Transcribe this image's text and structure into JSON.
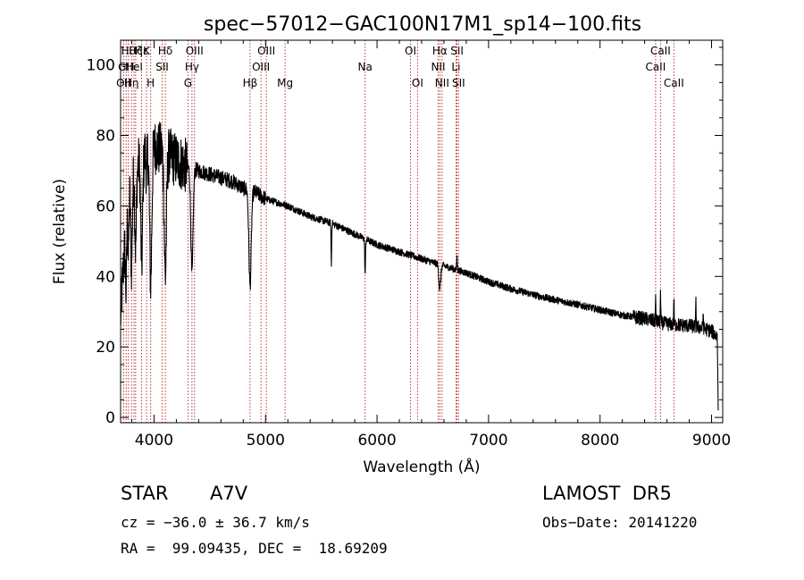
{
  "chart_data": {
    "type": "line",
    "title": "spec−57012−GAC100N17M1_sp14−100.fits",
    "xlabel": "Wavelength (Å)",
    "ylabel": "Flux (relative)",
    "xlim": [
      3700,
      9100
    ],
    "ylim": [
      -1.5,
      107
    ],
    "x_ticks": [
      {
        "value": 4000,
        "label": "4000"
      },
      {
        "value": 5000,
        "label": "5000"
      },
      {
        "value": 6000,
        "label": "6000"
      },
      {
        "value": 7000,
        "label": "7000"
      },
      {
        "value": 8000,
        "label": "8000"
      },
      {
        "value": 9000,
        "label": "9000"
      }
    ],
    "y_ticks": [
      {
        "value": 0,
        "label": "0"
      },
      {
        "value": 20,
        "label": "20"
      },
      {
        "value": 40,
        "label": "40"
      },
      {
        "value": 60,
        "label": "60"
      },
      {
        "value": 80,
        "label": "80"
      },
      {
        "value": 100,
        "label": "100"
      }
    ],
    "grid": false,
    "spectrum_anchors": [
      [
        3700,
        28
      ],
      [
        3720,
        40
      ],
      [
        3740,
        50
      ],
      [
        3760,
        62
      ],
      [
        3780,
        66
      ],
      [
        3800,
        68
      ],
      [
        3830,
        70
      ],
      [
        3860,
        72
      ],
      [
        3900,
        74
      ],
      [
        3950,
        76
      ],
      [
        4000,
        77
      ],
      [
        4050,
        76
      ],
      [
        4100,
        75
      ],
      [
        4150,
        74
      ],
      [
        4200,
        73
      ],
      [
        4250,
        72
      ],
      [
        4300,
        71
      ],
      [
        4400,
        70
      ],
      [
        4500,
        69
      ],
      [
        4600,
        68
      ],
      [
        4700,
        67
      ],
      [
        4800,
        65
      ],
      [
        4900,
        64
      ],
      [
        5000,
        62
      ],
      [
        5100,
        61
      ],
      [
        5200,
        60
      ],
      [
        5400,
        57
      ],
      [
        5600,
        55
      ],
      [
        5800,
        52
      ],
      [
        6000,
        49
      ],
      [
        6200,
        47
      ],
      [
        6400,
        45
      ],
      [
        6600,
        43
      ],
      [
        6800,
        41
      ],
      [
        7000,
        38.5
      ],
      [
        7200,
        36.5
      ],
      [
        7500,
        34
      ],
      [
        7800,
        32
      ],
      [
        8000,
        30.5
      ],
      [
        8200,
        29
      ],
      [
        8400,
        28
      ],
      [
        8600,
        26.5
      ],
      [
        8800,
        26
      ],
      [
        8900,
        25.5
      ],
      [
        9000,
        24.5
      ],
      [
        9050,
        23
      ]
    ],
    "absorption_features": [
      {
        "center": 3750,
        "depth": 20,
        "width": 8
      },
      {
        "center": 3770,
        "depth": 18,
        "width": 8
      },
      {
        "center": 3798,
        "depth": 25,
        "width": 10
      },
      {
        "center": 3835,
        "depth": 22,
        "width": 10
      },
      {
        "center": 3889,
        "depth": 30,
        "width": 12
      },
      {
        "center": 3933,
        "depth": 10,
        "width": 5
      },
      {
        "center": 3970,
        "depth": 38,
        "width": 14
      },
      {
        "center": 4101,
        "depth": 35,
        "width": 14
      },
      {
        "center": 4340,
        "depth": 30,
        "width": 14
      },
      {
        "center": 4861,
        "depth": 27,
        "width": 15
      },
      {
        "center": 5590,
        "depth": 12,
        "width": 4
      },
      {
        "center": 5893,
        "depth": 10,
        "width": 5
      },
      {
        "center": 6563,
        "depth": 7,
        "width": 12
      }
    ],
    "emission_features": [
      {
        "center": 6717,
        "height": 4,
        "width": 4
      },
      {
        "center": 8498,
        "height": 6,
        "width": 3
      },
      {
        "center": 8542,
        "height": 8,
        "width": 3
      },
      {
        "center": 8662,
        "height": 8,
        "width": 3
      },
      {
        "center": 8860,
        "height": 7,
        "width": 3
      },
      {
        "center": 8925,
        "height": 5,
        "width": 3
      }
    ],
    "line_markers": [
      {
        "wavelength": 3727,
        "label": "OII",
        "row": 3
      },
      {
        "wavelength": 3750,
        "label": "GH",
        "row": 2
      },
      {
        "wavelength": 3770,
        "label": "Hθ",
        "row": 1
      },
      {
        "wavelength": 3798,
        "label": "Hη",
        "row": 3
      },
      {
        "wavelength": 3820,
        "label": "HeI",
        "row": 2
      },
      {
        "wavelength": 3835,
        "label": "Hζ",
        "row": 1
      },
      {
        "wavelength": 3889,
        "label": "Hε",
        "row": 0
      },
      {
        "wavelength": 3933,
        "label": "K",
        "row": 1
      },
      {
        "wavelength": 3970,
        "label": "H",
        "row": 3
      },
      {
        "wavelength": 4072,
        "label": "SII",
        "row": 2
      },
      {
        "wavelength": 4101,
        "label": "Hδ",
        "row": 1
      },
      {
        "wavelength": 4304,
        "label": "G",
        "row": 3
      },
      {
        "wavelength": 4340,
        "label": "Hγ",
        "row": 2
      },
      {
        "wavelength": 4363,
        "label": "OIII",
        "row": 1
      },
      {
        "wavelength": 4861,
        "label": "Hβ",
        "row": 3
      },
      {
        "wavelength": 4959,
        "label": "OIII",
        "row": 2
      },
      {
        "wavelength": 5007,
        "label": "OIII",
        "row": 1
      },
      {
        "wavelength": 5175,
        "label": "Mg",
        "row": 3
      },
      {
        "wavelength": 5893,
        "label": "Na",
        "row": 2
      },
      {
        "wavelength": 6300,
        "label": "OI",
        "row": 1
      },
      {
        "wavelength": 6363,
        "label": "OI",
        "row": 3
      },
      {
        "wavelength": 6548,
        "label": "NII",
        "row": 2
      },
      {
        "wavelength": 6563,
        "label": "Hα",
        "row": 1
      },
      {
        "wavelength": 6583,
        "label": "NII",
        "row": 3
      },
      {
        "wavelength": 6708,
        "label": "Li",
        "row": 2
      },
      {
        "wavelength": 6717,
        "label": "SII",
        "row": 1
      },
      {
        "wavelength": 6731,
        "label": "SII",
        "row": 3
      },
      {
        "wavelength": 8498,
        "label": "CaII",
        "row": 2
      },
      {
        "wavelength": 8542,
        "label": "CaII",
        "row": 1
      },
      {
        "wavelength": 8662,
        "label": "CaII",
        "row": 3
      }
    ]
  },
  "info": {
    "object_class": "STAR",
    "subclass": "A7V",
    "survey": "LAMOST  DR5",
    "velocity": "cz = −36.0 ± 36.7 km/s",
    "obs_date": "Obs−Date: 20141220",
    "coords": "RA =  99.09435, DEC =  18.69209"
  },
  "colors": {
    "spectrum": "#000000",
    "marker": "#b22222",
    "axis": "#000000"
  }
}
